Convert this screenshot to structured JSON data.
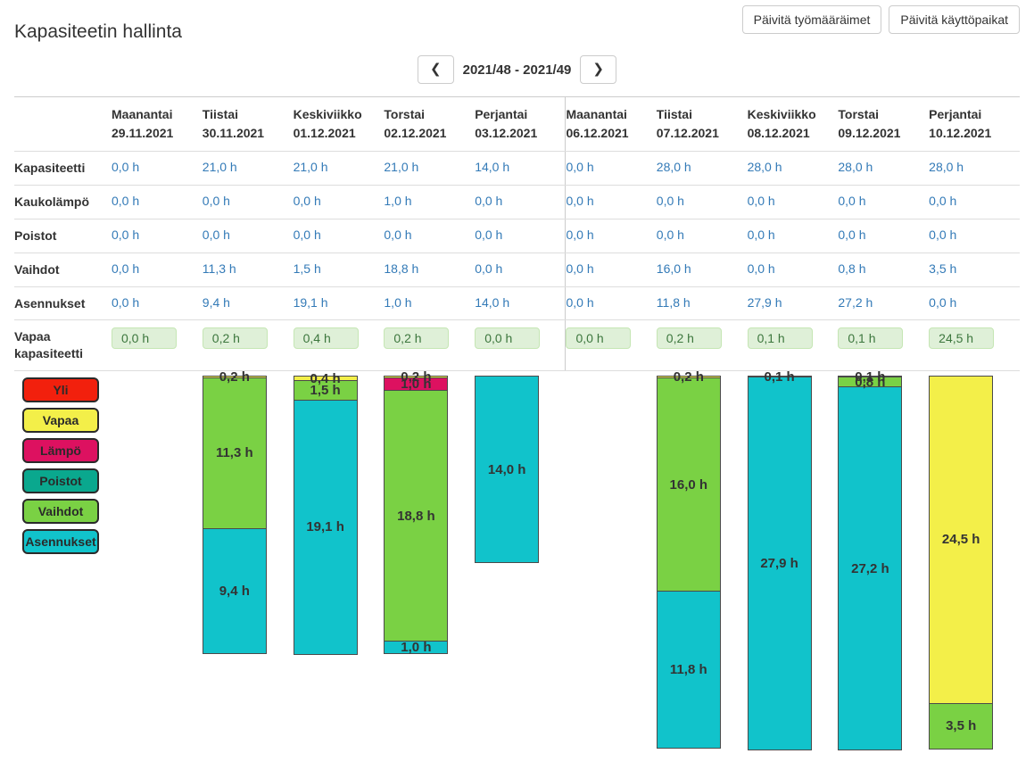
{
  "title": "Kapasiteetin hallinta",
  "toolbar": {
    "update_workorders_label": "Päivitä työmääräimet",
    "update_sites_label": "Päivitä käyttöpaikat"
  },
  "nav": {
    "prev_glyph": "❮",
    "next_glyph": "❯",
    "week_range_label": "2021/48 - 2021/49"
  },
  "table": {
    "columns": [
      {
        "day": "Maanantai",
        "date": "29.11.2021"
      },
      {
        "day": "Tiistai",
        "date": "30.11.2021"
      },
      {
        "day": "Keskiviikko",
        "date": "01.12.2021"
      },
      {
        "day": "Torstai",
        "date": "02.12.2021"
      },
      {
        "day": "Perjantai",
        "date": "03.12.2021"
      },
      {
        "day": "Maanantai",
        "date": "06.12.2021"
      },
      {
        "day": "Tiistai",
        "date": "07.12.2021"
      },
      {
        "day": "Keskiviikko",
        "date": "08.12.2021"
      },
      {
        "day": "Torstai",
        "date": "09.12.2021"
      },
      {
        "day": "Perjantai",
        "date": "10.12.2021"
      }
    ],
    "rows": [
      {
        "label": "Kapasiteetti",
        "highlight": false,
        "values": [
          "0,0 h",
          "21,0 h",
          "21,0 h",
          "21,0 h",
          "14,0 h",
          "0,0 h",
          "28,0 h",
          "28,0 h",
          "28,0 h",
          "28,0 h"
        ]
      },
      {
        "label": "Kaukolämpö",
        "highlight": false,
        "values": [
          "0,0 h",
          "0,0 h",
          "0,0 h",
          "1,0 h",
          "0,0 h",
          "0,0 h",
          "0,0 h",
          "0,0 h",
          "0,0 h",
          "0,0 h"
        ]
      },
      {
        "label": "Poistot",
        "highlight": false,
        "values": [
          "0,0 h",
          "0,0 h",
          "0,0 h",
          "0,0 h",
          "0,0 h",
          "0,0 h",
          "0,0 h",
          "0,0 h",
          "0,0 h",
          "0,0 h"
        ]
      },
      {
        "label": "Vaihdot",
        "highlight": false,
        "values": [
          "0,0 h",
          "11,3 h",
          "1,5 h",
          "18,8 h",
          "0,0 h",
          "0,0 h",
          "16,0 h",
          "0,0 h",
          "0,8 h",
          "3,5 h"
        ]
      },
      {
        "label": "Asennukset",
        "highlight": false,
        "values": [
          "0,0 h",
          "9,4 h",
          "19,1 h",
          "1,0 h",
          "14,0 h",
          "0,0 h",
          "11,8 h",
          "27,9 h",
          "27,2 h",
          "0,0 h"
        ]
      },
      {
        "label": "Vapaa kapasiteetti",
        "highlight": true,
        "values": [
          "0,0 h",
          "0,2 h",
          "0,4 h",
          "0,2 h",
          "0,0 h",
          "0,0 h",
          "0,2 h",
          "0,1 h",
          "0,1 h",
          "24,5 h"
        ]
      }
    ]
  },
  "legend": [
    {
      "label": "Yli",
      "color": "#f2200d"
    },
    {
      "label": "Vapaa",
      "color": "#f3ef49"
    },
    {
      "label": "Lämpö",
      "color": "#dd1160"
    },
    {
      "label": "Poistot",
      "color": "#0aa88e"
    },
    {
      "label": "Vaihdot",
      "color": "#7ad144"
    },
    {
      "label": "Asennukset",
      "color": "#11c3cb"
    }
  ],
  "chart_data": {
    "type": "bar",
    "stacked": true,
    "top_aligned": true,
    "value_labels": true,
    "unit": "h",
    "ylim": [
      0,
      28.1
    ],
    "categories": [
      "29.11.2021",
      "30.11.2021",
      "01.12.2021",
      "02.12.2021",
      "03.12.2021",
      "06.12.2021",
      "07.12.2021",
      "08.12.2021",
      "09.12.2021",
      "10.12.2021"
    ],
    "series": [
      {
        "name": "Vapaa",
        "values": [
          0,
          0.2,
          0.4,
          0.2,
          0,
          0,
          0.2,
          0.1,
          0.1,
          24.5
        ]
      },
      {
        "name": "Lämpö",
        "values": [
          0,
          0,
          0,
          1.0,
          0,
          0,
          0,
          0,
          0,
          0
        ]
      },
      {
        "name": "Vaihdot",
        "values": [
          0,
          11.3,
          1.5,
          18.8,
          0,
          0,
          16.0,
          0,
          0.8,
          3.5
        ]
      },
      {
        "name": "Asennukset",
        "values": [
          0,
          9.4,
          19.1,
          1.0,
          14.0,
          0,
          11.8,
          27.9,
          27.2,
          0
        ]
      }
    ]
  }
}
